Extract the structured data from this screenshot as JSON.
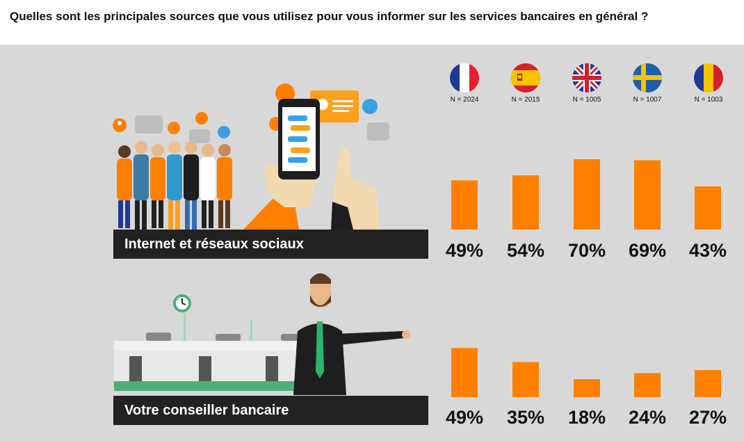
{
  "question": "Quelles sont les principales sources que vous utilisez pour vous informer sur les services bancaires en général ?",
  "countries": [
    {
      "flag": "france-flag-icon",
      "n_label": "N = 2024"
    },
    {
      "flag": "spain-flag-icon",
      "n_label": "N = 2015"
    },
    {
      "flag": "uk-flag-icon",
      "n_label": "N = 1005"
    },
    {
      "flag": "sweden-flag-icon",
      "n_label": "N = 1007"
    },
    {
      "flag": "romania-flag-icon",
      "n_label": "N = 1003"
    }
  ],
  "chart_data": [
    {
      "type": "bar",
      "title": "Internet et réseaux sociaux",
      "categories": [
        "N = 2024",
        "N = 2015",
        "N = 1005",
        "N = 1007",
        "N = 1003"
      ],
      "values": [
        49,
        54,
        70,
        69,
        43
      ],
      "value_labels": [
        "49%",
        "54%",
        "70%",
        "69%",
        "43%"
      ],
      "unit": "%",
      "grid": false
    },
    {
      "type": "bar",
      "title": "Votre conseiller bancaire",
      "categories": [
        "N = 2024",
        "N = 2015",
        "N = 1005",
        "N = 1007",
        "N = 1003"
      ],
      "values": [
        49,
        35,
        18,
        24,
        27
      ],
      "value_labels": [
        "49%",
        "35%",
        "18%",
        "24%",
        "27%"
      ],
      "unit": "%",
      "grid": false
    }
  ],
  "colors": {
    "bar": "#ff7f00",
    "panel": "#d8d8d8",
    "label_bg": "#222222",
    "label_text": "#ffffff"
  }
}
